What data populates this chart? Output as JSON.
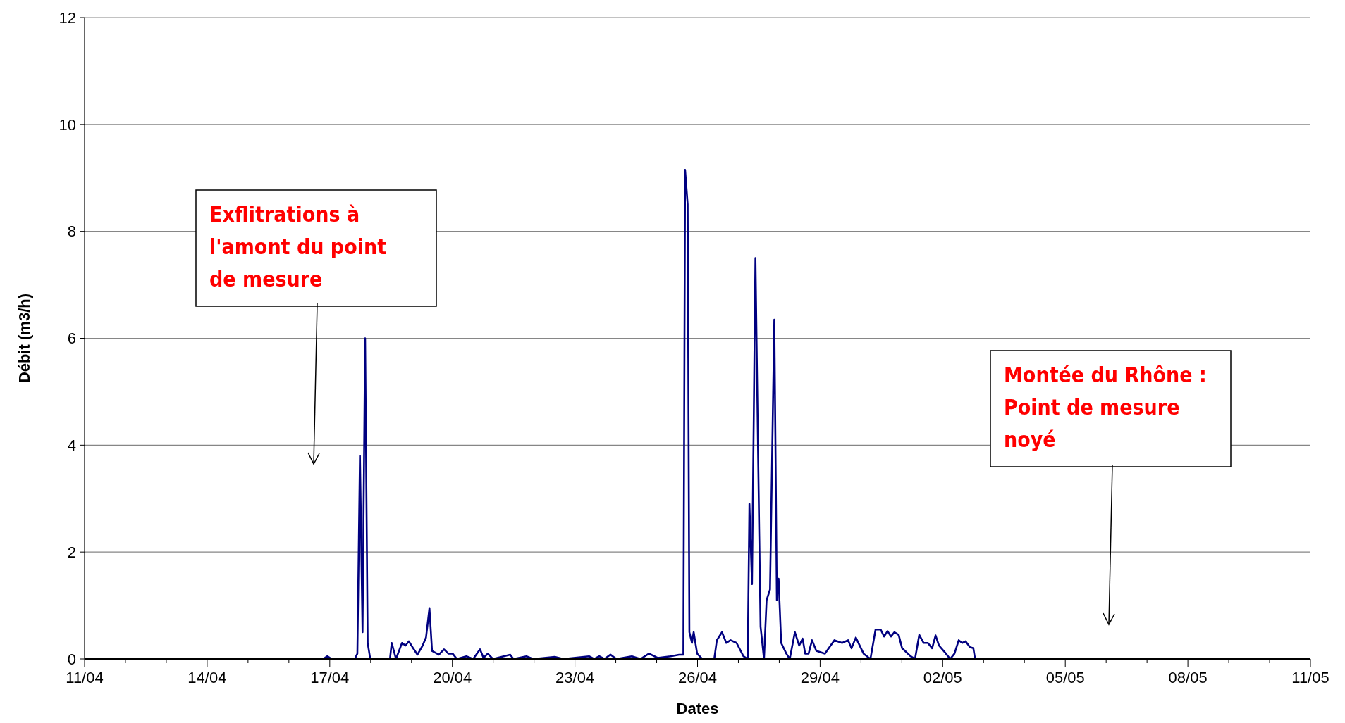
{
  "chart_data": {
    "type": "line",
    "xlabel": "Dates",
    "ylabel": "Débit (m3/h)",
    "x": [
      "--04-13T00:00",
      "--04-16T20:05",
      "--04-16T22:35",
      "--04-17T01:05",
      "--04-17T14:43",
      "--04-17T16:13",
      "--04-17T17:44",
      "--04-17T19:15",
      "--04-17T20:46",
      "--04-17T22:16",
      "--04-17T23:47",
      "--04-18T11:22",
      "--04-18T12:23",
      "--04-18T14:54",
      "--04-18T18:26",
      "--04-18T20:27",
      "--04-18T22:28",
      "--04-19T00:59",
      "--04-19T03:30",
      "--04-19T06:31",
      "--04-19T08:32",
      "--04-19T10:33",
      "--04-19T12:04",
      "--04-19T16:06",
      "--04-19T19:07",
      "--04-19T21:38",
      "--04-20T00:09",
      "--04-20T02:40",
      "--04-20T08:13",
      "--04-20T12:14",
      "--04-20T16:16",
      "--04-20T18:17",
      "--04-20T20:48",
      "--04-20T23:50",
      "--04-21T09:55",
      "--04-21T11:56",
      "--04-21T19:29",
      "--04-21T23:31",
      "--04-22T12:07",
      "--04-22T17:10",
      "--04-23T08:17",
      "--04-23T11:17",
      "--04-23T14:18",
      "--04-23T17:20",
      "--04-23T20:51",
      "--04-24T00:23",
      "--04-24T09:27",
      "--04-24T14:30",
      "--04-24T19:32",
      "--04-25T00:35",
      "--04-25T08:08",
      "--04-25T13:10",
      "--04-25T15:41",
      "--04-25T16:42",
      "--04-25T18:13",
      "--04-25T19:13",
      "--04-25T20:44",
      "--04-25T21:45",
      "--04-25T23:46",
      "--04-26T02:47",
      "--04-26T09:50",
      "--04-26T11:21",
      "--04-26T14:22",
      "--04-26T16:54",
      "--04-26T19:25",
      "--04-26T22:56",
      "--04-27T02:58",
      "--04-27T05:29",
      "--04-27T06:29",
      "--04-27T08:00",
      "--04-27T10:01",
      "--04-27T11:31",
      "--04-27T13:02",
      "--04-27T15:03",
      "--04-27T16:34",
      "--04-27T18:35",
      "--04-27T21:06",
      "--04-27T22:36",
      "--04-27T23:37",
      "--04-28T01:08",
      "--04-28T04:09",
      "--04-28T06:10",
      "--04-28T09:11",
      "--04-28T11:43",
      "--04-28T13:44",
      "--04-28T15:14",
      "--04-28T17:15",
      "--04-28T19:16",
      "--04-28T21:47",
      "--04-29T02:50",
      "--04-29T08:22",
      "--04-29T12:55",
      "--04-29T16:26",
      "--04-29T18:27",
      "--04-29T20:59",
      "--04-30T01:31",
      "--04-30T05:33",
      "--04-30T08:34",
      "--04-30T11:34",
      "--04-30T13:35",
      "--04-30T15:36",
      "--04-30T17:37",
      "--04-30T19:38",
      "--04-30T22:09",
      "--05-01T00:10",
      "--05-01T05:12",
      "--05-01T07:44",
      "--05-01T10:15",
      "--05-01T12:46",
      "--05-01T15:17",
      "--05-01T17:48",
      "--05-01T19:49",
      "--05-01T21:50",
      "--05-02T01:22",
      "--05-02T04:24",
      "--05-02T06:55",
      "--05-02T09:26",
      "--05-02T11:27",
      "--05-02T13:28",
      "--05-02T15:59",
      "--05-02T18:00",
      "--05-02T19:01",
      "--05-07T22:26"
    ],
    "series": [
      {
        "color": "#000080",
        "values": [
          0,
          0,
          0.05,
          0,
          0,
          0.1,
          3.8,
          0.5,
          6.0,
          0.3,
          0,
          0,
          0.3,
          0,
          0.3,
          0.25,
          0.33,
          0.2,
          0.08,
          0.25,
          0.4,
          0.95,
          0.15,
          0.08,
          0.18,
          0.1,
          0.1,
          0,
          0.05,
          0,
          0.18,
          0.02,
          0.1,
          0,
          0.08,
          0,
          0.05,
          0,
          0.04,
          0,
          0.05,
          0,
          0.05,
          0,
          0.08,
          0,
          0.05,
          0,
          0.1,
          0.02,
          0.05,
          0.08,
          0.08,
          9.15,
          8.5,
          0.5,
          0.3,
          0.5,
          0.1,
          0,
          0,
          0.35,
          0.5,
          0.3,
          0.35,
          0.3,
          0.05,
          0,
          2.9,
          1.4,
          7.5,
          4.0,
          0.6,
          0,
          1.1,
          1.3,
          6.35,
          1.1,
          1.5,
          0.3,
          0.1,
          0,
          0.5,
          0.25,
          0.38,
          0.1,
          0.1,
          0.35,
          0.15,
          0.1,
          0.35,
          0.3,
          0.35,
          0.2,
          0.4,
          0.1,
          0,
          0.55,
          0.55,
          0.42,
          0.52,
          0.42,
          0.5,
          0.45,
          0.2,
          0.05,
          0,
          0.45,
          0.3,
          0.3,
          0.2,
          0.44,
          0.25,
          0.12,
          0,
          0.1,
          0.35,
          0.3,
          0.33,
          0.22,
          0.2,
          0,
          0
        ]
      }
    ],
    "xlim": [
      "--04-11",
      "--05-11"
    ],
    "xticks": [
      {
        "value": "--04-11",
        "label": "11/04"
      },
      {
        "value": "--04-12",
        "label": null
      },
      {
        "value": "--04-13",
        "label": null
      },
      {
        "value": "--04-14",
        "label": "14/04"
      },
      {
        "value": "--04-15",
        "label": null
      },
      {
        "value": "--04-16",
        "label": null
      },
      {
        "value": "--04-17",
        "label": "17/04"
      },
      {
        "value": "--04-18",
        "label": null
      },
      {
        "value": "--04-19",
        "label": null
      },
      {
        "value": "--04-20",
        "label": "20/04"
      },
      {
        "value": "--04-21",
        "label": null
      },
      {
        "value": "--04-22",
        "label": null
      },
      {
        "value": "--04-23",
        "label": "23/04"
      },
      {
        "value": "--04-24",
        "label": null
      },
      {
        "value": "--04-25",
        "label": null
      },
      {
        "value": "--04-26",
        "label": "26/04"
      },
      {
        "value": "--04-27",
        "label": null
      },
      {
        "value": "--04-28",
        "label": null
      },
      {
        "value": "--04-29",
        "label": "29/04"
      },
      {
        "value": "--04-30",
        "label": null
      },
      {
        "value": "--05-01",
        "label": null
      },
      {
        "value": "--05-02",
        "label": "02/05"
      },
      {
        "value": "--05-03",
        "label": null
      },
      {
        "value": "--05-04",
        "label": null
      },
      {
        "value": "--05-05",
        "label": "05/05"
      },
      {
        "value": "--05-06",
        "label": null
      },
      {
        "value": "--05-07",
        "label": null
      },
      {
        "value": "--05-08",
        "label": "08/05"
      },
      {
        "value": "--05-09",
        "label": null
      },
      {
        "value": "--05-10",
        "label": null
      },
      {
        "value": "--05-11",
        "label": "11/05"
      }
    ],
    "ylim": [
      0,
      12
    ],
    "yticks": [
      0,
      2,
      4,
      6,
      8,
      10,
      12
    ],
    "grid": "y",
    "marker": "none",
    "line_style": "solid",
    "annotations": [
      "Exflitrations à l'amont du point de mesure",
      "Montée du Rhône : Point de mesure noyé"
    ]
  }
}
